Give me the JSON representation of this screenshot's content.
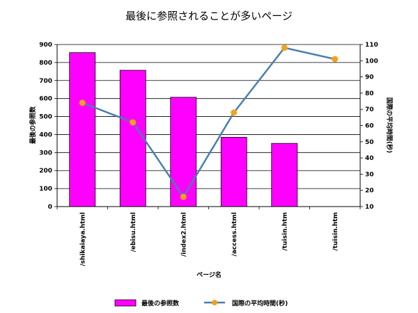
{
  "chart_data": {
    "type": "bar+line",
    "title": "最後に参照されることが多いページ",
    "xlabel": "ページ名",
    "categories": [
      "/shikaiaya.html",
      "/ebisu.html",
      "/index2.html",
      "/access.html",
      "/tuisin.htm",
      "/tuisin.htm"
    ],
    "y_left": {
      "label": "最後の参照数",
      "min": 0,
      "max": 900,
      "step": 100
    },
    "y_right": {
      "label": "国際の平均時間(秒)",
      "min": 10,
      "max": 110,
      "step": 10
    },
    "series": [
      {
        "name": "最後の参照数",
        "type": "bar",
        "axis": "left",
        "color": "#ff00ff",
        "values": [
          855,
          757,
          607,
          385,
          351,
          null
        ]
      },
      {
        "name": "国際の平均時間(秒)",
        "type": "line",
        "axis": "right",
        "color": "#4a7fae",
        "marker_color": "#f5a21b",
        "values": [
          74,
          62,
          16,
          68,
          108,
          101
        ]
      }
    ],
    "grid": true,
    "legend": "bottom"
  }
}
